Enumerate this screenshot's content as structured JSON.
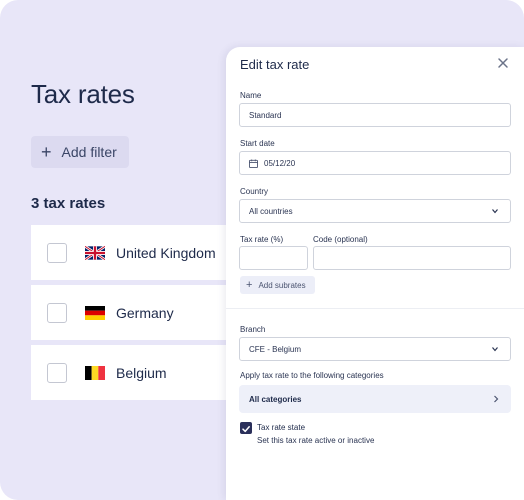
{
  "page": {
    "title": "Tax rates",
    "add_filter_label": "Add filter",
    "count_label": "3 tax rates",
    "rows": [
      {
        "label": "United Kingdom",
        "flag": "uk-flag"
      },
      {
        "label": "Germany",
        "flag": "germany-flag"
      },
      {
        "label": "Belgium",
        "flag": "belgium-flag"
      }
    ]
  },
  "panel": {
    "title": "Edit tax rate",
    "name": {
      "label": "Name",
      "value": "Standard"
    },
    "start_date": {
      "label": "Start date",
      "value": "05/12/20"
    },
    "country": {
      "label": "Country",
      "value": "All countries"
    },
    "tax_rate": {
      "label": "Tax rate (%)",
      "value": ""
    },
    "code": {
      "label": "Code (optional)",
      "value": ""
    },
    "add_subrates_label": "Add subrates",
    "branch": {
      "label": "Branch",
      "value": "CFE - Belgium"
    },
    "categories": {
      "label": "Apply tax rate to the following categories",
      "value": "All categories"
    },
    "state": {
      "title": "Tax rate state",
      "subtitle": "Set this tax rate active or inactive",
      "checked": true
    }
  },
  "colors": {
    "background": "#e8e6f8",
    "text_dark": "#1e2a4a",
    "accent": "#2a2f5a"
  }
}
